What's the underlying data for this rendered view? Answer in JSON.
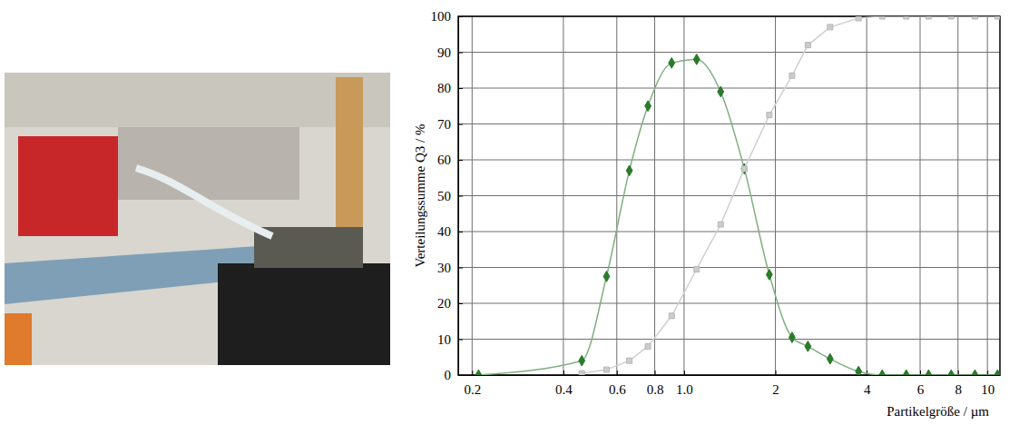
{
  "chart_data": {
    "type": "line",
    "x_label": "Partikelgröße / µm",
    "y_label": "Verteilungssumme Q3 / %",
    "log": "x",
    "grid": true,
    "xlim": [
      0.18,
      11
    ],
    "ylim": [
      0,
      100
    ],
    "xticks": [
      0.2,
      0.4,
      0.6,
      0.8,
      {
        "value": 1,
        "label": "1.0"
      },
      2,
      4,
      6,
      8,
      10
    ],
    "yticks": [
      0,
      10,
      20,
      30,
      40,
      50,
      60,
      70,
      80,
      90,
      100
    ],
    "series": [
      {
        "color": "#2a7a2a",
        "marker": "diamond",
        "line_style": "smooth",
        "x": [
          0.21,
          0.46,
          0.555,
          0.66,
          0.76,
          0.91,
          1.1,
          1.32,
          1.58,
          1.91,
          2.27,
          2.56,
          3.03,
          3.76,
          4.5,
          5.4,
          6.4,
          7.6,
          9.1,
          10.8
        ],
        "values": [
          0,
          4,
          27.5,
          57,
          75,
          87,
          88,
          79,
          57.5,
          28,
          10.5,
          8,
          4.5,
          1,
          0,
          0,
          0,
          0,
          0,
          0
        ]
      },
      {
        "color": "#b0b0b0",
        "marker": "square",
        "line_style": "solid",
        "x": [
          0.46,
          0.555,
          0.66,
          0.76,
          0.91,
          1.1,
          1.32,
          1.58,
          1.91,
          2.27,
          2.56,
          3.03,
          3.76,
          4.5,
          5.4,
          6.4,
          7.6,
          9.1,
          10.8
        ],
        "values": [
          0.5,
          1.5,
          4,
          8,
          16.5,
          29.5,
          42,
          57.5,
          72.5,
          83.5,
          92,
          97,
          99.5,
          100,
          100,
          100,
          100,
          100,
          100
        ]
      }
    ]
  }
}
